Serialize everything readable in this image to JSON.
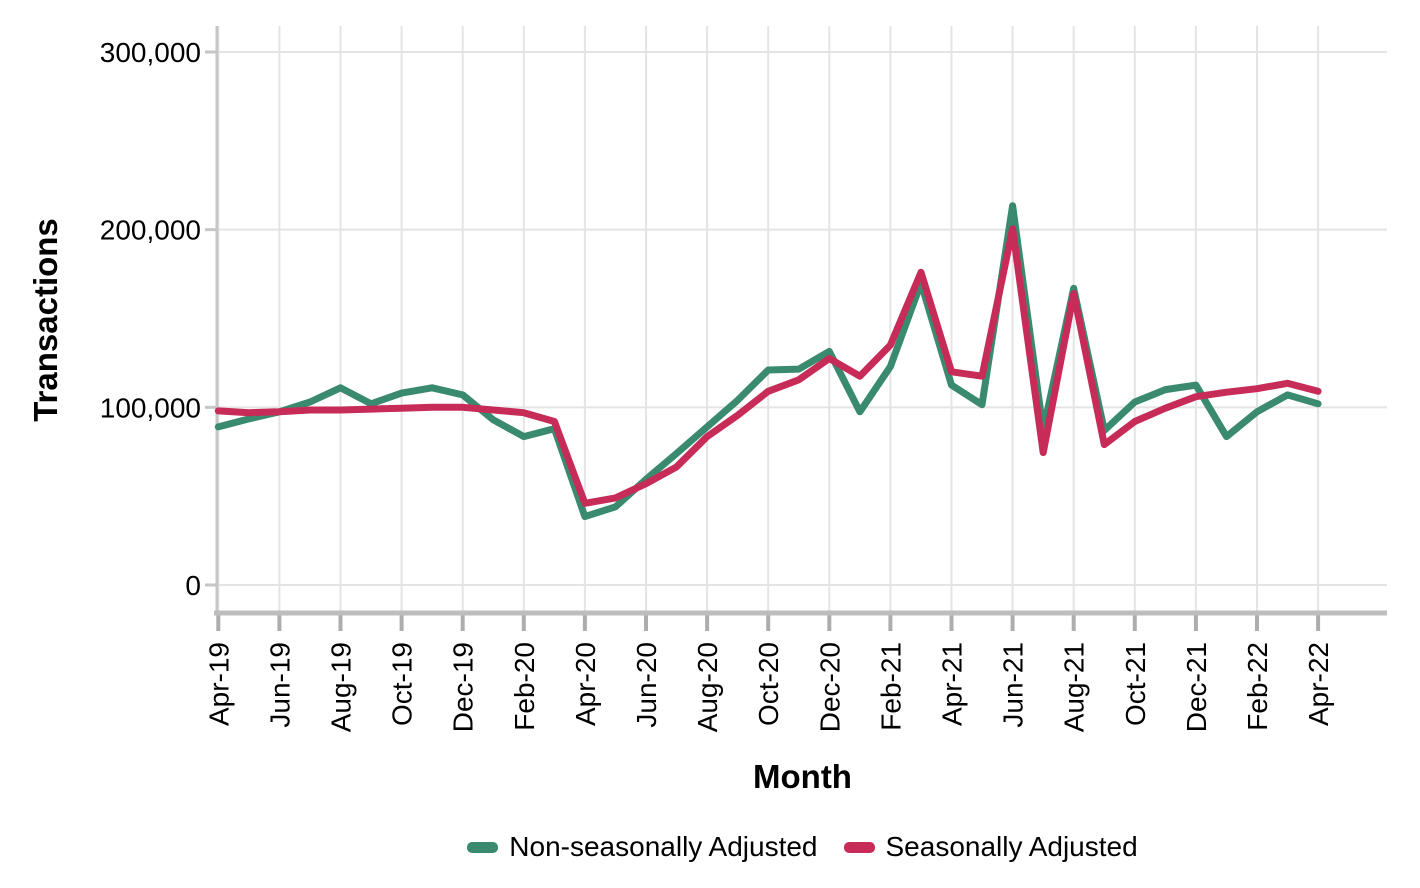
{
  "chart_data": {
    "type": "line",
    "title": "",
    "xlabel": "Month",
    "ylabel": "Transactions",
    "legend_position": "bottom center",
    "grid": "major gridlines on, light gray, no minor gridlines",
    "ylim": [
      0,
      300000
    ],
    "y_ticks": [
      {
        "value": 0,
        "label": "0"
      },
      {
        "value": 100000,
        "label": "100,000"
      },
      {
        "value": 200000,
        "label": "200,000"
      },
      {
        "value": 300000,
        "label": "300,000"
      }
    ],
    "x_tick_labels": [
      "Apr-19",
      "Jun-19",
      "Aug-19",
      "Oct-19",
      "Dec-19",
      "Feb-20",
      "Apr-20",
      "Jun-20",
      "Aug-20",
      "Oct-20",
      "Dec-20",
      "Feb-21",
      "Apr-21",
      "Jun-21",
      "Aug-21",
      "Oct-21",
      "Dec-21",
      "Feb-22",
      "Apr-22"
    ],
    "months": [
      "Apr-19",
      "May-19",
      "Jun-19",
      "Jul-19",
      "Aug-19",
      "Sep-19",
      "Oct-19",
      "Nov-19",
      "Dec-19",
      "Jan-20",
      "Feb-20",
      "Mar-20",
      "Apr-20",
      "May-20",
      "Jun-20",
      "Jul-20",
      "Aug-20",
      "Sep-20",
      "Oct-20",
      "Nov-20",
      "Dec-20",
      "Jan-21",
      "Feb-21",
      "Mar-21",
      "Apr-21",
      "May-21",
      "Jun-21",
      "Jul-21",
      "Aug-21",
      "Sep-21",
      "Oct-21",
      "Nov-21",
      "Dec-21",
      "Jan-22",
      "Feb-22",
      "Mar-22",
      "Apr-22"
    ],
    "series": [
      {
        "name": "Non-seasonally Adjusted",
        "color": "#398A6F",
        "values": [
          89000,
          93500,
          97500,
          103000,
          111000,
          102000,
          108000,
          111000,
          107000,
          93000,
          83500,
          88000,
          38500,
          44000,
          59500,
          74000,
          89000,
          104000,
          121000,
          121500,
          131500,
          97500,
          123000,
          170000,
          112500,
          101500,
          213500,
          87000,
          167000,
          87000,
          103000,
          110000,
          112500,
          83500,
          97500,
          107000,
          102000
        ]
      },
      {
        "name": "Seasonally Adjusted",
        "color": "#C72C58",
        "values": [
          98000,
          97000,
          97500,
          98500,
          98500,
          99000,
          99500,
          100000,
          100000,
          98500,
          97000,
          92000,
          46000,
          49000,
          57000,
          66500,
          83500,
          95500,
          109000,
          115500,
          127500,
          117500,
          135000,
          176000,
          120000,
          117500,
          200500,
          74500,
          164000,
          79000,
          92000,
          99500,
          106000,
          108500,
          110500,
          113500,
          109000
        ]
      }
    ]
  },
  "style": {
    "gridline_color": "#E4E4E4",
    "y_axis_line_color": "#C6C6C6",
    "x_axis_line_color": "#BDBDBD",
    "tick_color": "#ADADAD",
    "label_color": "#000000",
    "line_width": 7
  }
}
